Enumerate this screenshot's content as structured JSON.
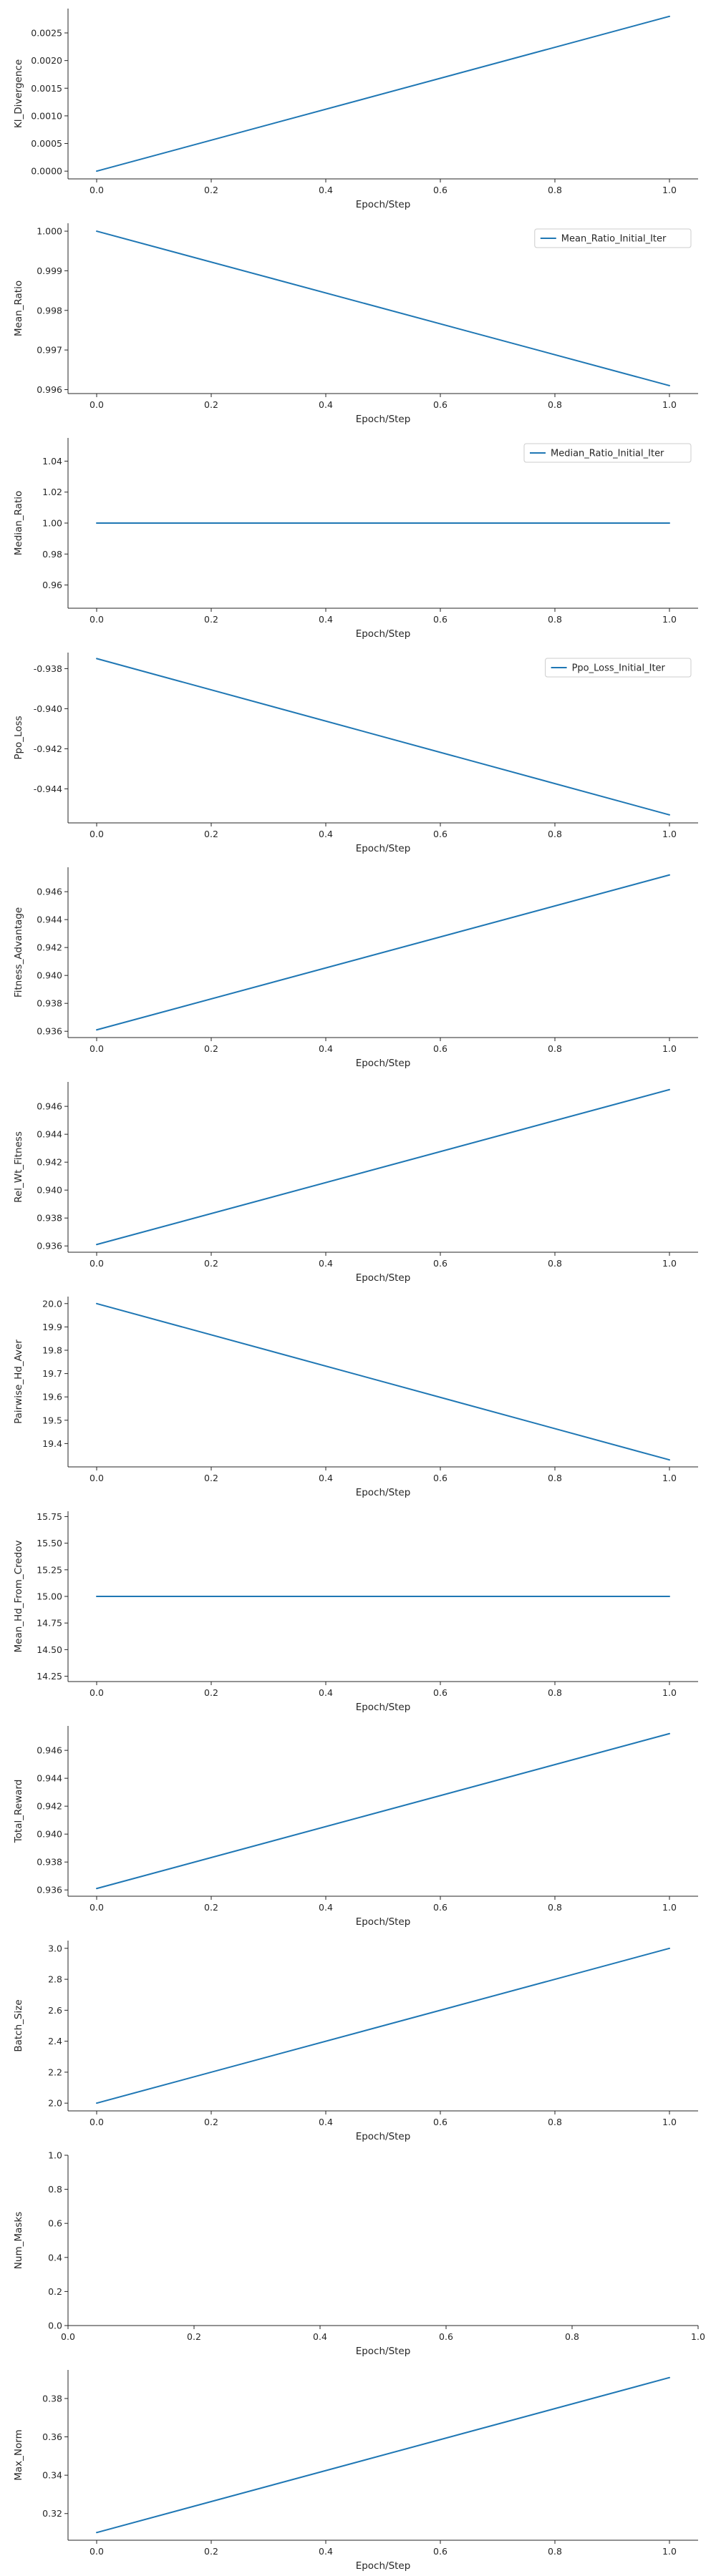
{
  "chart_data": [
    {
      "type": "line",
      "xlabel": "Epoch/Step",
      "ylabel": "Kl_Divergence",
      "x": [
        0.0,
        1.0
      ],
      "xlim": [
        -0.05,
        1.05
      ],
      "xticks": [
        "0.0",
        "0.2",
        "0.4",
        "0.6",
        "0.8",
        "1.0"
      ],
      "ylim": [
        -0.00014,
        0.00294
      ],
      "yticks": [
        "0.0000",
        "0.0005",
        "0.0010",
        "0.0015",
        "0.0020",
        "0.0025"
      ],
      "series": [
        {
          "values": [
            0.0,
            0.0028
          ]
        }
      ],
      "legend": null,
      "grid": false
    },
    {
      "type": "line",
      "xlabel": "Epoch/Step",
      "ylabel": "Mean_Ratio",
      "x": [
        0.0,
        1.0
      ],
      "xlim": [
        -0.05,
        1.05
      ],
      "xticks": [
        "0.0",
        "0.2",
        "0.4",
        "0.6",
        "0.8",
        "1.0"
      ],
      "ylim": [
        0.9959,
        1.0002
      ],
      "yticks": [
        "0.996",
        "0.997",
        "0.998",
        "0.999",
        "1.000"
      ],
      "series": [
        {
          "name": "Mean_Ratio_Initial_Iter",
          "values": [
            1.0,
            0.9961
          ]
        }
      ],
      "legend": "top-right",
      "grid": false
    },
    {
      "type": "line",
      "xlabel": "Epoch/Step",
      "ylabel": "Median_Ratio",
      "x": [
        0.0,
        1.0
      ],
      "xlim": [
        -0.05,
        1.05
      ],
      "xticks": [
        "0.0",
        "0.2",
        "0.4",
        "0.6",
        "0.8",
        "1.0"
      ],
      "ylim": [
        0.945,
        1.055
      ],
      "yticks": [
        "0.96",
        "0.98",
        "1.00",
        "1.02",
        "1.04"
      ],
      "series": [
        {
          "name": "Median_Ratio_Initial_Iter",
          "values": [
            1.0,
            1.0
          ]
        }
      ],
      "legend": "top-right",
      "grid": false
    },
    {
      "type": "line",
      "xlabel": "Epoch/Step",
      "ylabel": "Ppo_Loss",
      "x": [
        0.0,
        1.0
      ],
      "xlim": [
        -0.05,
        1.05
      ],
      "xticks": [
        "0.0",
        "0.2",
        "0.4",
        "0.6",
        "0.8",
        "1.0"
      ],
      "ylim": [
        -0.9457,
        -0.9372
      ],
      "yticks": [
        "-0.938",
        "-0.940",
        "-0.942",
        "-0.944"
      ],
      "series": [
        {
          "name": "Ppo_Loss_Initial_Iter",
          "values": [
            -0.9375,
            -0.9453
          ]
        }
      ],
      "legend": "top-right",
      "grid": false
    },
    {
      "type": "line",
      "xlabel": "Epoch/Step",
      "ylabel": "Fitness_Advantage",
      "x": [
        0.0,
        1.0
      ],
      "xlim": [
        -0.05,
        1.05
      ],
      "xticks": [
        "0.0",
        "0.2",
        "0.4",
        "0.6",
        "0.8",
        "1.0"
      ],
      "ylim": [
        0.93555,
        0.94775
      ],
      "yticks": [
        "0.936",
        "0.938",
        "0.940",
        "0.942",
        "0.944",
        "0.946"
      ],
      "series": [
        {
          "values": [
            0.9361,
            0.9472
          ]
        }
      ],
      "legend": null,
      "grid": false
    },
    {
      "type": "line",
      "xlabel": "Epoch/Step",
      "ylabel": "Rel_Wt_Fitness",
      "x": [
        0.0,
        1.0
      ],
      "xlim": [
        -0.05,
        1.05
      ],
      "xticks": [
        "0.0",
        "0.2",
        "0.4",
        "0.6",
        "0.8",
        "1.0"
      ],
      "ylim": [
        0.93555,
        0.94775
      ],
      "yticks": [
        "0.936",
        "0.938",
        "0.940",
        "0.942",
        "0.944",
        "0.946"
      ],
      "series": [
        {
          "values": [
            0.9361,
            0.9472
          ]
        }
      ],
      "legend": null,
      "grid": false
    },
    {
      "type": "line",
      "xlabel": "Epoch/Step",
      "ylabel": "Pairwise_Hd_Aver",
      "x": [
        0.0,
        1.0
      ],
      "xlim": [
        -0.05,
        1.05
      ],
      "xticks": [
        "0.0",
        "0.2",
        "0.4",
        "0.6",
        "0.8",
        "1.0"
      ],
      "ylim": [
        19.3,
        20.03
      ],
      "yticks": [
        "19.4",
        "19.5",
        "19.6",
        "19.7",
        "19.8",
        "19.9",
        "20.0"
      ],
      "series": [
        {
          "values": [
            20.0,
            19.33
          ]
        }
      ],
      "legend": null,
      "grid": false
    },
    {
      "type": "line",
      "xlabel": "Epoch/Step",
      "ylabel": "Mean_Hd_From_Credov",
      "x": [
        0.0,
        1.0
      ],
      "xlim": [
        -0.05,
        1.05
      ],
      "xticks": [
        "0.0",
        "0.2",
        "0.4",
        "0.6",
        "0.8",
        "1.0"
      ],
      "ylim": [
        14.2,
        15.8
      ],
      "yticks": [
        "14.25",
        "14.50",
        "14.75",
        "15.00",
        "15.25",
        "15.50",
        "15.75"
      ],
      "series": [
        {
          "values": [
            15.0,
            15.0
          ]
        }
      ],
      "legend": null,
      "grid": false
    },
    {
      "type": "line",
      "xlabel": "Epoch/Step",
      "ylabel": "Total_Reward",
      "x": [
        0.0,
        1.0
      ],
      "xlim": [
        -0.05,
        1.05
      ],
      "xticks": [
        "0.0",
        "0.2",
        "0.4",
        "0.6",
        "0.8",
        "1.0"
      ],
      "ylim": [
        0.93555,
        0.94775
      ],
      "yticks": [
        "0.936",
        "0.938",
        "0.940",
        "0.942",
        "0.944",
        "0.946"
      ],
      "series": [
        {
          "values": [
            0.9361,
            0.9472
          ]
        }
      ],
      "legend": null,
      "grid": false
    },
    {
      "type": "line",
      "xlabel": "Epoch/Step",
      "ylabel": "Batch_Size",
      "x": [
        0.0,
        1.0
      ],
      "xlim": [
        -0.05,
        1.05
      ],
      "xticks": [
        "0.0",
        "0.2",
        "0.4",
        "0.6",
        "0.8",
        "1.0"
      ],
      "ylim": [
        1.95,
        3.05
      ],
      "yticks": [
        "2.0",
        "2.2",
        "2.4",
        "2.6",
        "2.8",
        "3.0"
      ],
      "series": [
        {
          "values": [
            2.0,
            3.0
          ]
        }
      ],
      "legend": null,
      "grid": false
    },
    {
      "type": "line",
      "xlabel": "Epoch/Step",
      "ylabel": "Num_Masks",
      "x": [],
      "xlim": [
        0.0,
        1.0
      ],
      "xticks": [
        "0.0",
        "0.2",
        "0.4",
        "0.6",
        "0.8",
        "1.0"
      ],
      "ylim": [
        0.0,
        1.0
      ],
      "yticks": [
        "0.0",
        "0.2",
        "0.4",
        "0.6",
        "0.8",
        "1.0"
      ],
      "series": [],
      "legend": null,
      "grid": false
    },
    {
      "type": "line",
      "xlabel": "Epoch/Step",
      "ylabel": "Max_Norm",
      "x": [
        0.0,
        1.0
      ],
      "xlim": [
        -0.05,
        1.05
      ],
      "xticks": [
        "0.0",
        "0.2",
        "0.4",
        "0.6",
        "0.8",
        "1.0"
      ],
      "ylim": [
        0.3061,
        0.3949
      ],
      "yticks": [
        "0.32",
        "0.34",
        "0.36",
        "0.38"
      ],
      "series": [
        {
          "values": [
            0.3101,
            0.3909
          ]
        }
      ],
      "legend": null,
      "grid": false
    }
  ],
  "colors": {
    "series": "#1f77b4",
    "axis": "#262626",
    "legend_border": "#cccccc"
  }
}
